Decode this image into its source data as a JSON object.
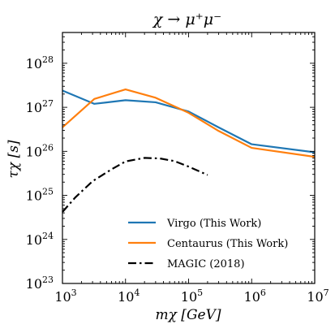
{
  "chart_data": {
    "type": "line",
    "title": "χ → μ⁺μ⁻",
    "xlabel": "mχ [GeV]",
    "ylabel": "τχ [s]",
    "xscale": "log",
    "yscale": "log",
    "xlim": [
      1000,
      10000000
    ],
    "ylim": [
      1e+23,
      5e+28
    ],
    "x_ticks": [
      {
        "value": 1000,
        "base": "10",
        "exp": "3"
      },
      {
        "value": 10000,
        "base": "10",
        "exp": "4"
      },
      {
        "value": 100000,
        "base": "10",
        "exp": "5"
      },
      {
        "value": 1000000,
        "base": "10",
        "exp": "6"
      },
      {
        "value": 10000000,
        "base": "10",
        "exp": "7"
      }
    ],
    "y_ticks": [
      {
        "value": 1e+23,
        "base": "10",
        "exp": "23"
      },
      {
        "value": 1e+24,
        "base": "10",
        "exp": "24"
      },
      {
        "value": 1e+25,
        "base": "10",
        "exp": "25"
      },
      {
        "value": 1e+26,
        "base": "10",
        "exp": "26"
      },
      {
        "value": 1e+27,
        "base": "10",
        "exp": "27"
      },
      {
        "value": 1e+28,
        "base": "10",
        "exp": "28"
      }
    ],
    "legend_position": "lower-right",
    "grid": false,
    "series": [
      {
        "name": "Virgo (This Work)",
        "color": "#1f77b4",
        "style": "solid",
        "x": [
          1000,
          3200,
          10000,
          30000,
          100000,
          300000,
          1000000,
          10000000
        ],
        "y": [
          2.4e+27,
          1.2e+27,
          1.45e+27,
          1.3e+27,
          8e+26,
          3.5e+26,
          1.45e+26,
          9.5e+25
        ]
      },
      {
        "name": "Centaurus (This Work)",
        "color": "#ff7f0e",
        "style": "solid",
        "x": [
          1000,
          3200,
          10000,
          30000,
          100000,
          300000,
          1000000,
          10000000
        ],
        "y": [
          3.5e+26,
          1.55e+27,
          2.55e+27,
          1.65e+27,
          7.5e+26,
          2.9e+26,
          1.2e+26,
          7.5e+25
        ]
      },
      {
        "name": "MAGIC (2018)",
        "color": "#000000",
        "style": "dashdot",
        "x": [
          1000,
          1600,
          3000,
          6000,
          10000,
          20000,
          35000,
          60000,
          100000,
          200000
        ],
        "y": [
          4.2e+24,
          9e+24,
          2.1e+25,
          3.9e+25,
          5.9e+25,
          7.1e+25,
          6.9e+25,
          6e+25,
          4.5e+25,
          2.9e+25
        ]
      }
    ]
  }
}
